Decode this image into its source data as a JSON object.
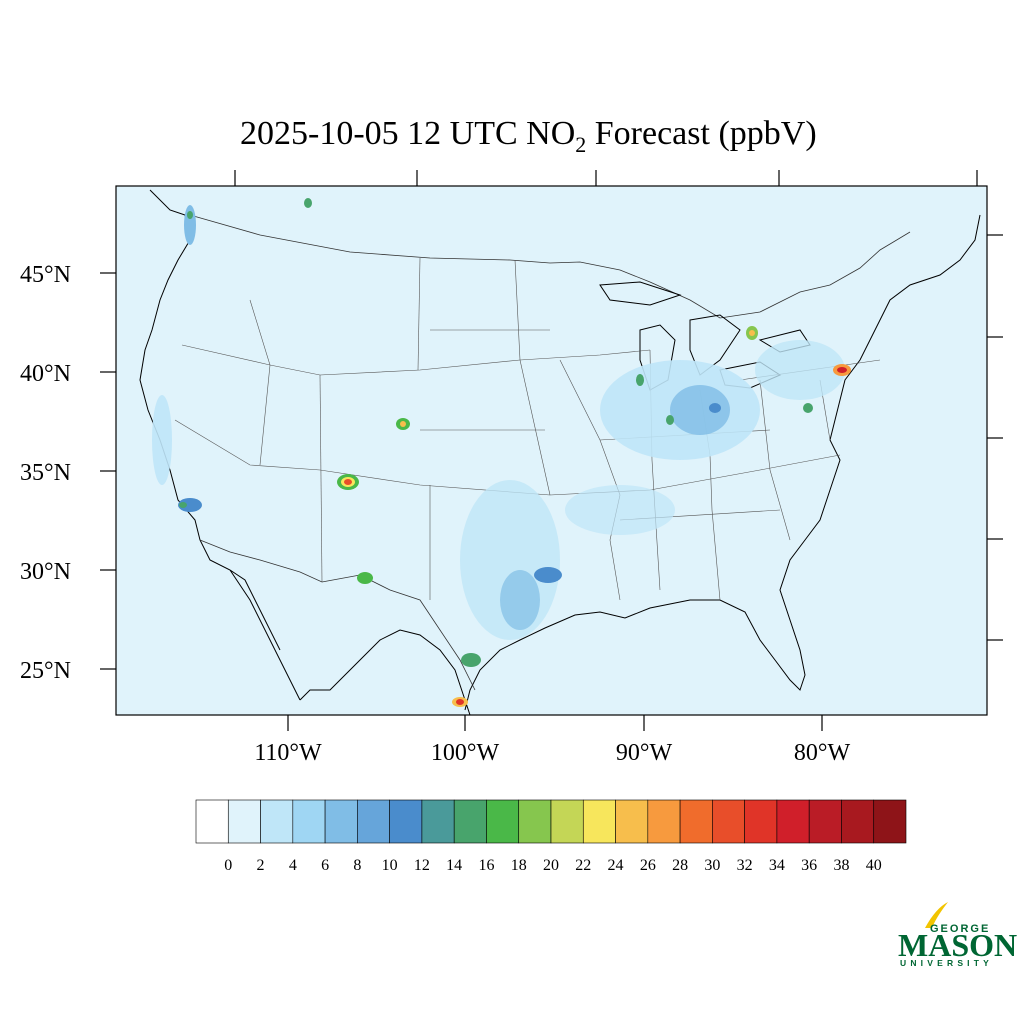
{
  "title": {
    "main": "2025-10-05 12 UTC NO",
    "subscript": "2",
    "rest": " Forecast (ppbV)"
  },
  "map": {
    "background_color": "#e0f3fb",
    "lat_labels": [
      "45°N",
      "40°N",
      "35°N",
      "30°N",
      "25°N"
    ],
    "lon_labels": [
      "110°W",
      "100°W",
      "90°W",
      "80°W"
    ]
  },
  "colorbar": {
    "colors": [
      "#ffffff",
      "#e0f3fb",
      "#bfe6f8",
      "#9fd6f3",
      "#80bde6",
      "#66a5da",
      "#4a8ccc",
      "#4a9a9a",
      "#48a46c",
      "#4ab848",
      "#86c64e",
      "#c4d656",
      "#f7e65c",
      "#f7be4c",
      "#f79a3e",
      "#f06c2c",
      "#e84e2a",
      "#e03428",
      "#d01f2a",
      "#ba1c26",
      "#a8191f",
      "#8e1418"
    ],
    "labels": [
      "0",
      "2",
      "4",
      "6",
      "8",
      "10",
      "12",
      "14",
      "16",
      "18",
      "20",
      "22",
      "24",
      "26",
      "28",
      "30",
      "32",
      "34",
      "36",
      "38",
      "40"
    ]
  },
  "logo": {
    "top": "GEORGE",
    "main": "MASON",
    "bottom": "UNIVERSITY",
    "color": "#006633",
    "accent": "#f2c400"
  }
}
